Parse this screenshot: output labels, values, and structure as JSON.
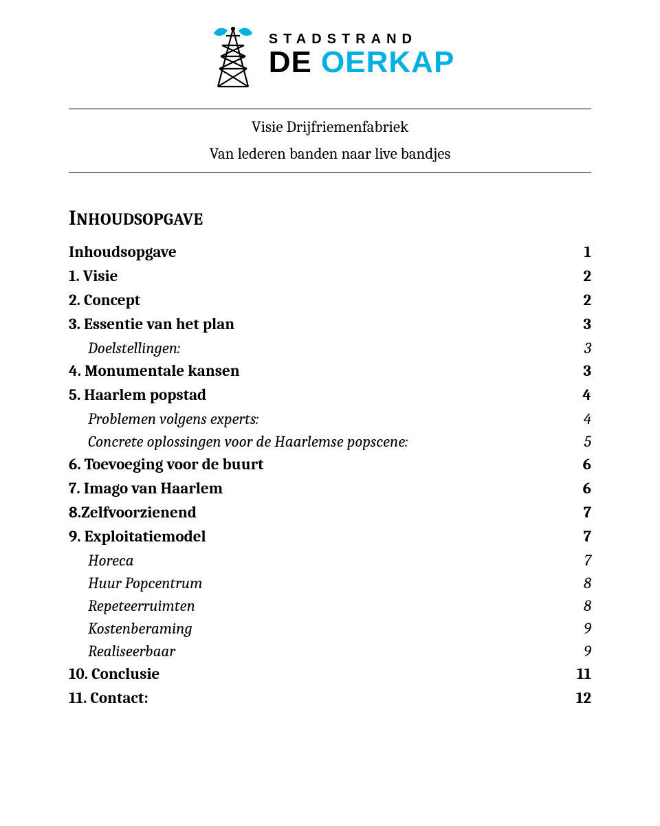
{
  "logo": {
    "top_text": "STADSTRAND",
    "main_text": "DE OERKAP",
    "accent_color": "#00b0e0",
    "text_color": "#000000"
  },
  "title": {
    "line1": "Visie Drijfriemenfabriek",
    "line2": "Van lederen banden naar live bandjes"
  },
  "heading": {
    "first": "I",
    "rest": "NHOUDSOPGAVE"
  },
  "toc": [
    {
      "type": "bold",
      "label": "Inhoudsopgave",
      "page": "1"
    },
    {
      "type": "bold",
      "label": "1. Visie",
      "page": "2"
    },
    {
      "type": "bold",
      "label": "2. Concept",
      "page": "2"
    },
    {
      "type": "bold",
      "label": "3. Essentie van het plan",
      "page": "3"
    },
    {
      "type": "sub",
      "label": "Doelstellingen:",
      "page": "3"
    },
    {
      "type": "bold",
      "label": "4. Monumentale kansen",
      "page": "3"
    },
    {
      "type": "bold",
      "label": "5. Haarlem popstad",
      "page": "4"
    },
    {
      "type": "sub",
      "label": "Problemen volgens experts:",
      "page": "4"
    },
    {
      "type": "sub",
      "label": "Concrete oplossingen voor de Haarlemse popscene:",
      "page": "5"
    },
    {
      "type": "bold",
      "label": "6. Toevoeging voor de buurt",
      "page": "6"
    },
    {
      "type": "bold",
      "label": "7. Imago van Haarlem",
      "page": "6"
    },
    {
      "type": "bold",
      "label": "8.Zelfvoorzienend",
      "page": "7"
    },
    {
      "type": "bold",
      "label": "9. Exploitatiemodel",
      "page": "7"
    },
    {
      "type": "sub",
      "label": "Horeca",
      "page": "7"
    },
    {
      "type": "sub",
      "label": "Huur Popcentrum",
      "page": "8"
    },
    {
      "type": "sub",
      "label": "Repeteerruimten",
      "page": "8"
    },
    {
      "type": "sub",
      "label": "Kostenberaming",
      "page": "9"
    },
    {
      "type": "sub",
      "label": "Realiseerbaar",
      "page": "9"
    },
    {
      "type": "bold",
      "label": "10. Conclusie",
      "page": "11"
    },
    {
      "type": "bold",
      "label": "11. Contact:",
      "page": "12"
    }
  ]
}
